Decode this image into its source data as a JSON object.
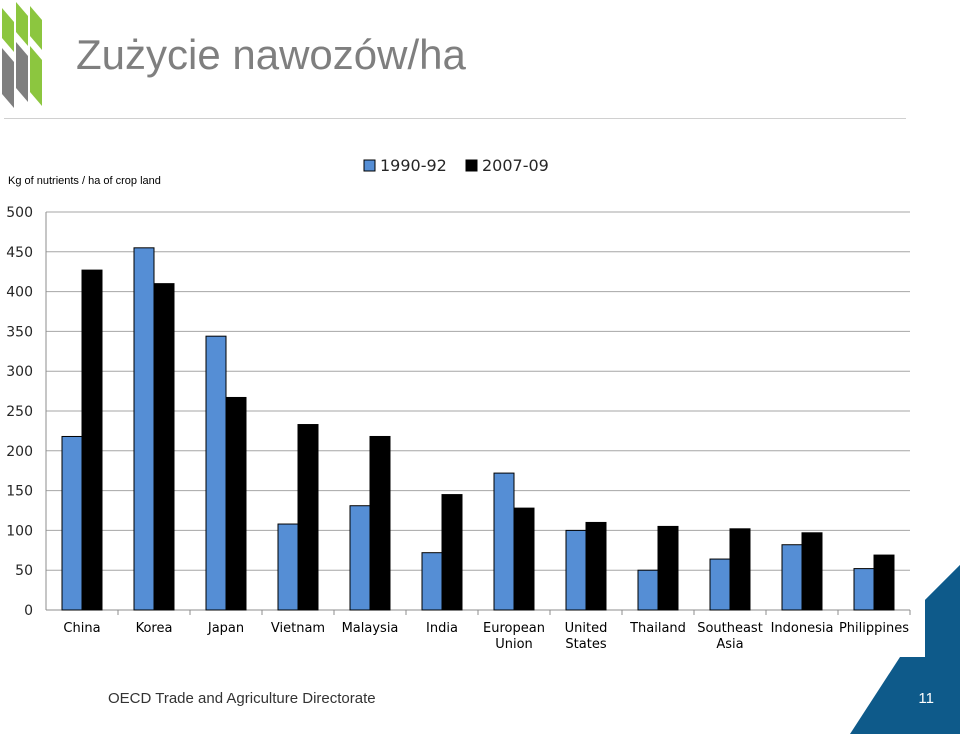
{
  "slide": {
    "title": "Zużycie nawozów/ha",
    "footer": "OECD Trade and Agriculture Directorate",
    "page_number": "11",
    "colors": {
      "title": "#7f7f7f",
      "logo_green": "#8cc63f",
      "logo_grey": "#7f7f7f",
      "corner_blue": "#0e5a8a",
      "corner_light": "#1f8bc9"
    }
  },
  "chart_data": {
    "type": "bar",
    "ylabel": "Kg of nutrients / ha of crop land",
    "ylim": [
      0,
      500
    ],
    "yticks": [
      0,
      50,
      100,
      150,
      200,
      250,
      300,
      350,
      400,
      450,
      500
    ],
    "grid": true,
    "legend_position": "top",
    "categories": [
      "China",
      "Korea",
      "Japan",
      "Vietnam",
      "Malaysia",
      "India",
      "European Union",
      "United States",
      "Thailand",
      "Southeast Asia",
      "Indonesia",
      "Philippines"
    ],
    "category_lines": [
      [
        "China"
      ],
      [
        "Korea"
      ],
      [
        "Japan"
      ],
      [
        "Vietnam"
      ],
      [
        "Malaysia"
      ],
      [
        "India"
      ],
      [
        "European",
        "Union"
      ],
      [
        "United",
        "States"
      ],
      [
        "Thailand"
      ],
      [
        "Southeast",
        "Asia"
      ],
      [
        "Indonesia"
      ],
      [
        "Philippines"
      ]
    ],
    "series": [
      {
        "name": "1990-92",
        "color": "#558ed5",
        "values": [
          218,
          455,
          344,
          108,
          131,
          72,
          172,
          100,
          50,
          64,
          82,
          52
        ]
      },
      {
        "name": "2007-09",
        "color": "#000000",
        "values": [
          427,
          410,
          267,
          233,
          218,
          145,
          128,
          110,
          105,
          102,
          97,
          69
        ]
      }
    ]
  }
}
